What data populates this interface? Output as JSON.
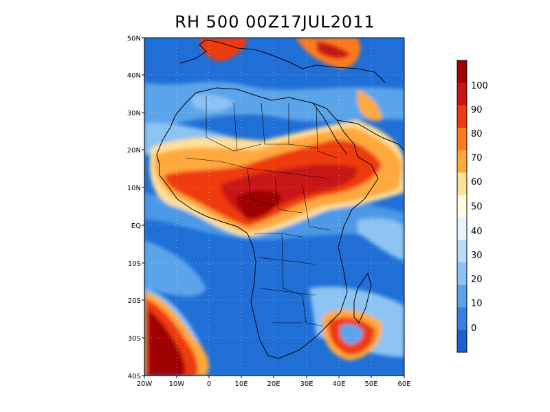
{
  "title": "RH 500 00Z17JUL2011",
  "map": {
    "lat_ticks": [
      "50N",
      "40N",
      "30N",
      "20N",
      "10N",
      "EQ",
      "10S",
      "20S",
      "30S",
      "40S"
    ],
    "lon_ticks": [
      "20W",
      "10W",
      "0",
      "10E",
      "20E",
      "30E",
      "40E",
      "50E",
      "60E"
    ],
    "extent": {
      "lon": [
        -20,
        60
      ],
      "lat": [
        -40,
        50
      ]
    }
  },
  "colorbar": {
    "labels": [
      "100",
      "90",
      "80",
      "70",
      "60",
      "50",
      "40",
      "30",
      "20",
      "10",
      "0"
    ],
    "colors": [
      "#a00000",
      "#c81414",
      "#ee3a10",
      "#ff7a1e",
      "#ffa83c",
      "#ffe098",
      "#ffffe0",
      "#e6f4ff",
      "#b8dcfb",
      "#8cc3f2",
      "#5aa5ea",
      "#3582e0",
      "#1f5fcf"
    ]
  }
}
